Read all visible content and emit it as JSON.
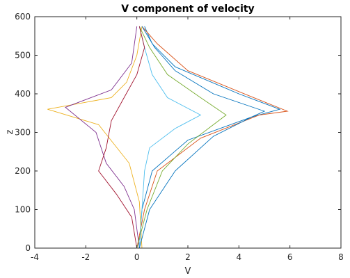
{
  "chart_data": {
    "type": "line",
    "title": "V component of velocity",
    "xlabel": "V",
    "ylabel": "z",
    "xlim": [
      -4,
      8
    ],
    "ylim": [
      0,
      600
    ],
    "xticks": [
      "-4",
      "-2",
      "0",
      "2",
      "4",
      "6",
      "8"
    ],
    "yticks": [
      "0",
      "100",
      "200",
      "300",
      "400",
      "500",
      "600"
    ],
    "grid": false,
    "legend": "none",
    "colors": [
      "#0072BD",
      "#D95319",
      "#EDB120",
      "#7E2F8E",
      "#77AC30",
      "#4DBEEE",
      "#A2142F"
    ],
    "series": [
      {
        "x": [
          0.1,
          0.2,
          0.6,
          2.0,
          4.5,
          5.6,
          4.0,
          1.5,
          0.6,
          0.3
        ],
        "y": [
          0,
          100,
          200,
          280,
          340,
          360,
          400,
          470,
          530,
          575
        ]
      },
      {
        "x": [
          0.0,
          0.3,
          0.8,
          2.5,
          4.8,
          5.9,
          4.4,
          2.0,
          0.8,
          0.2
        ],
        "y": [
          0,
          100,
          200,
          285,
          345,
          355,
          395,
          460,
          530,
          575
        ]
      },
      {
        "x": [
          0.2,
          0.1,
          -0.3,
          -1.5,
          -3.5,
          -1.0,
          -0.4,
          0.0,
          0.2
        ],
        "y": [
          0,
          120,
          220,
          320,
          360,
          390,
          430,
          500,
          575
        ]
      },
      {
        "x": [
          0.1,
          -0.1,
          -0.5,
          -1.2,
          -1.6,
          -2.8,
          -1.0,
          -0.2,
          0.0
        ],
        "y": [
          0,
          100,
          160,
          220,
          300,
          365,
          410,
          480,
          575
        ]
      },
      {
        "x": [
          0.0,
          0.4,
          1.0,
          2.0,
          3.0,
          3.5,
          2.5,
          1.2,
          0.5,
          0.1
        ],
        "y": [
          0,
          100,
          200,
          270,
          320,
          345,
          390,
          450,
          520,
          575
        ]
      },
      {
        "x": [
          0.1,
          0.2,
          0.3,
          0.5,
          1.5,
          2.5,
          1.2,
          0.6,
          0.3,
          0.1
        ],
        "y": [
          0,
          100,
          200,
          260,
          310,
          345,
          390,
          450,
          520,
          575
        ]
      },
      {
        "x": [
          0.0,
          -0.2,
          -0.8,
          -1.5,
          -1.2,
          -1.0,
          -0.5,
          0.0,
          0.3,
          0.1
        ],
        "y": [
          0,
          80,
          140,
          200,
          260,
          330,
          390,
          450,
          520,
          575
        ]
      },
      {
        "x": [
          0.1,
          0.5,
          1.5,
          3.0,
          4.5,
          5.0,
          3.0,
          1.5,
          0.7,
          0.2
        ],
        "y": [
          0,
          100,
          200,
          290,
          340,
          355,
          400,
          460,
          520,
          575
        ]
      }
    ]
  }
}
